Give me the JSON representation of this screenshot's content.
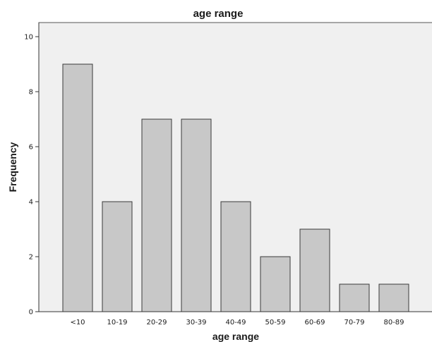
{
  "chart_data": {
    "type": "bar",
    "title": "age range",
    "xlabel": "age range",
    "ylabel": "Frequency",
    "categories": [
      "<10",
      "10-19",
      "20-29",
      "30-39",
      "40-49",
      "50-59",
      "60-69",
      "70-79",
      "80-89"
    ],
    "values": [
      9,
      4,
      7,
      7,
      4,
      2,
      3,
      1,
      1
    ],
    "ylim": [
      0,
      10
    ],
    "yticks": [
      0,
      2,
      4,
      6,
      8,
      10
    ],
    "grid": false,
    "legend": "none"
  },
  "colors": {
    "bar_fill": "#c8c8c8",
    "bar_stroke": "#3a3a3a",
    "plot_background": "#f0f0f0"
  }
}
